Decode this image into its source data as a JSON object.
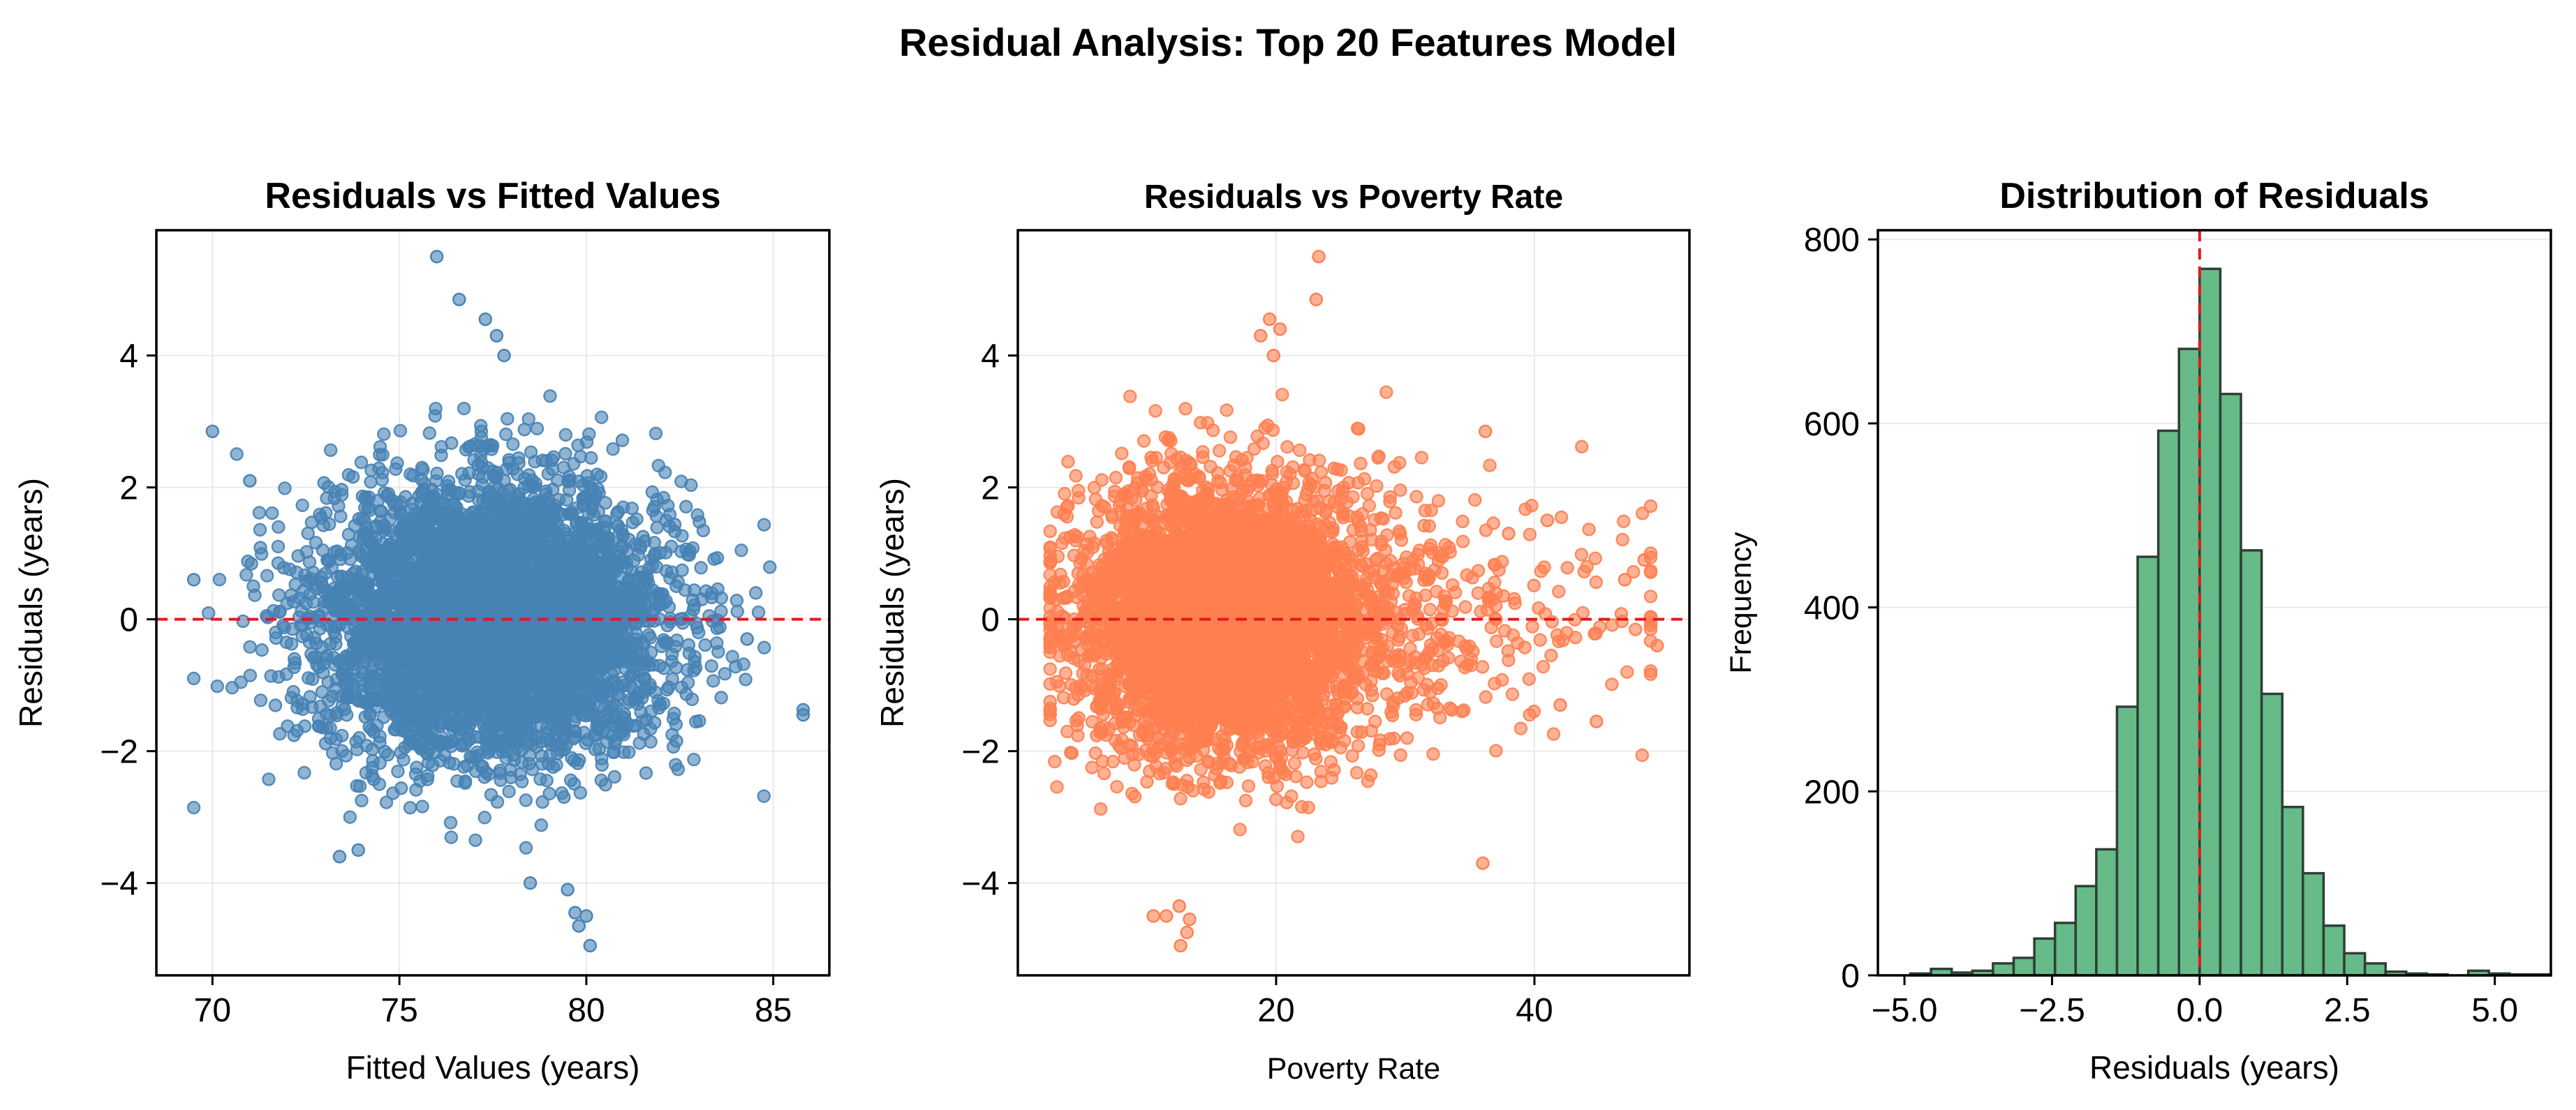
{
  "figure": {
    "title": "Residual Analysis: Top 20 Features Model"
  },
  "chart_data": [
    {
      "type": "scatter",
      "title": "Residuals vs Fitted Values",
      "xlabel": "Fitted Values (years)",
      "ylabel": "Residuals (years)",
      "xlim": [
        68.5,
        86.5
      ],
      "ylim": [
        -5.4,
        5.9
      ],
      "xticks": [
        70,
        75,
        80,
        85
      ],
      "yticks": [
        -4,
        -2,
        0,
        2,
        4
      ],
      "grid": true,
      "color": "#4682b4",
      "reference_line_y": 0,
      "reference_color": "#e31a1c",
      "n_points": 5000,
      "point_cloud": {
        "x_mean": 77.5,
        "x_sd": 2.3,
        "y_mean": 0,
        "y_sd": 1.02
      },
      "notable_points": [
        {
          "x": 76.0,
          "y": 5.5
        },
        {
          "x": 76.6,
          "y": 4.85
        },
        {
          "x": 77.3,
          "y": 4.55
        },
        {
          "x": 77.6,
          "y": 4.3
        },
        {
          "x": 77.8,
          "y": 4.0
        },
        {
          "x": 70.0,
          "y": 2.85
        },
        {
          "x": 85.8,
          "y": -1.45
        },
        {
          "x": 84.3,
          "y": -0.3
        },
        {
          "x": 79.5,
          "y": -4.1
        },
        {
          "x": 79.7,
          "y": -4.45
        },
        {
          "x": 80.0,
          "y": -4.5
        },
        {
          "x": 79.8,
          "y": -4.65
        },
        {
          "x": 80.1,
          "y": -4.95
        },
        {
          "x": 78.5,
          "y": -4.0
        },
        {
          "x": 73.4,
          "y": -3.6
        },
        {
          "x": 73.9,
          "y": -3.5
        },
        {
          "x": 69.5,
          "y": 0.6
        },
        {
          "x": 71.0,
          "y": 2.1
        }
      ]
    },
    {
      "type": "scatter",
      "title": "Residuals vs Poverty Rate",
      "xlabel": "Poverty Rate",
      "ylabel": "Residuals (years)",
      "xlim": [
        0,
        52
      ],
      "ylim": [
        -5.4,
        5.9
      ],
      "xticks": [
        20,
        40
      ],
      "yticks": [
        -4,
        -2,
        0,
        2,
        4
      ],
      "grid": true,
      "color": "#ff7f50",
      "reference_line_y": 0,
      "reference_color": "#e31a1c",
      "n_points": 5000,
      "point_cloud": {
        "x_mean": 15.5,
        "x_sd": 5.5,
        "y_mean": 0,
        "y_sd": 1.02
      },
      "notable_points": [
        {
          "x": 23.3,
          "y": 5.5
        },
        {
          "x": 23.1,
          "y": 4.85
        },
        {
          "x": 19.5,
          "y": 4.55
        },
        {
          "x": 20.3,
          "y": 4.4
        },
        {
          "x": 18.8,
          "y": 4.3
        },
        {
          "x": 19.8,
          "y": 4.0
        },
        {
          "x": 11.5,
          "y": -4.5
        },
        {
          "x": 12.5,
          "y": -4.35
        },
        {
          "x": 13.3,
          "y": -4.55
        },
        {
          "x": 13.1,
          "y": -4.75
        },
        {
          "x": 12.6,
          "y": -4.95
        },
        {
          "x": 10.5,
          "y": -4.5
        },
        {
          "x": 49.5,
          "y": -0.4
        },
        {
          "x": 48.5,
          "y": 0.9
        },
        {
          "x": 47.0,
          "y": 0.6
        },
        {
          "x": 44.8,
          "y": -1.55
        },
        {
          "x": 42.0,
          "y": -1.3
        },
        {
          "x": 36.2,
          "y": 2.85
        },
        {
          "x": 38.0,
          "y": 1.3
        },
        {
          "x": 41.0,
          "y": 1.5
        },
        {
          "x": 36.0,
          "y": -3.7
        }
      ]
    },
    {
      "type": "bar",
      "histogram": true,
      "title": "Distribution of Residuals",
      "xlabel": "Residuals (years)",
      "ylabel": "Frequency",
      "xlim": [
        -5.45,
        5.95
      ],
      "ylim": [
        0,
        810
      ],
      "xticks": [
        -5.0,
        -2.5,
        0.0,
        2.5,
        5.0
      ],
      "xtick_labels": [
        "−5.0",
        "−2.5",
        "0.0",
        "2.5",
        "5.0"
      ],
      "yticks": [
        0,
        200,
        400,
        600,
        800
      ],
      "grid": true,
      "color": "#66bb88",
      "edge_color": "#2f3f35",
      "reference_line_x": 0,
      "reference_color": "#e31a1c",
      "bin_start": -4.9,
      "bin_width": 0.35,
      "values": [
        2,
        7,
        3,
        5,
        13,
        19,
        40,
        57,
        97,
        137,
        292,
        455,
        592,
        681,
        768,
        632,
        462,
        306,
        183,
        111,
        54,
        24,
        13,
        4,
        2,
        1,
        0,
        5,
        2,
        1,
        1
      ]
    }
  ]
}
